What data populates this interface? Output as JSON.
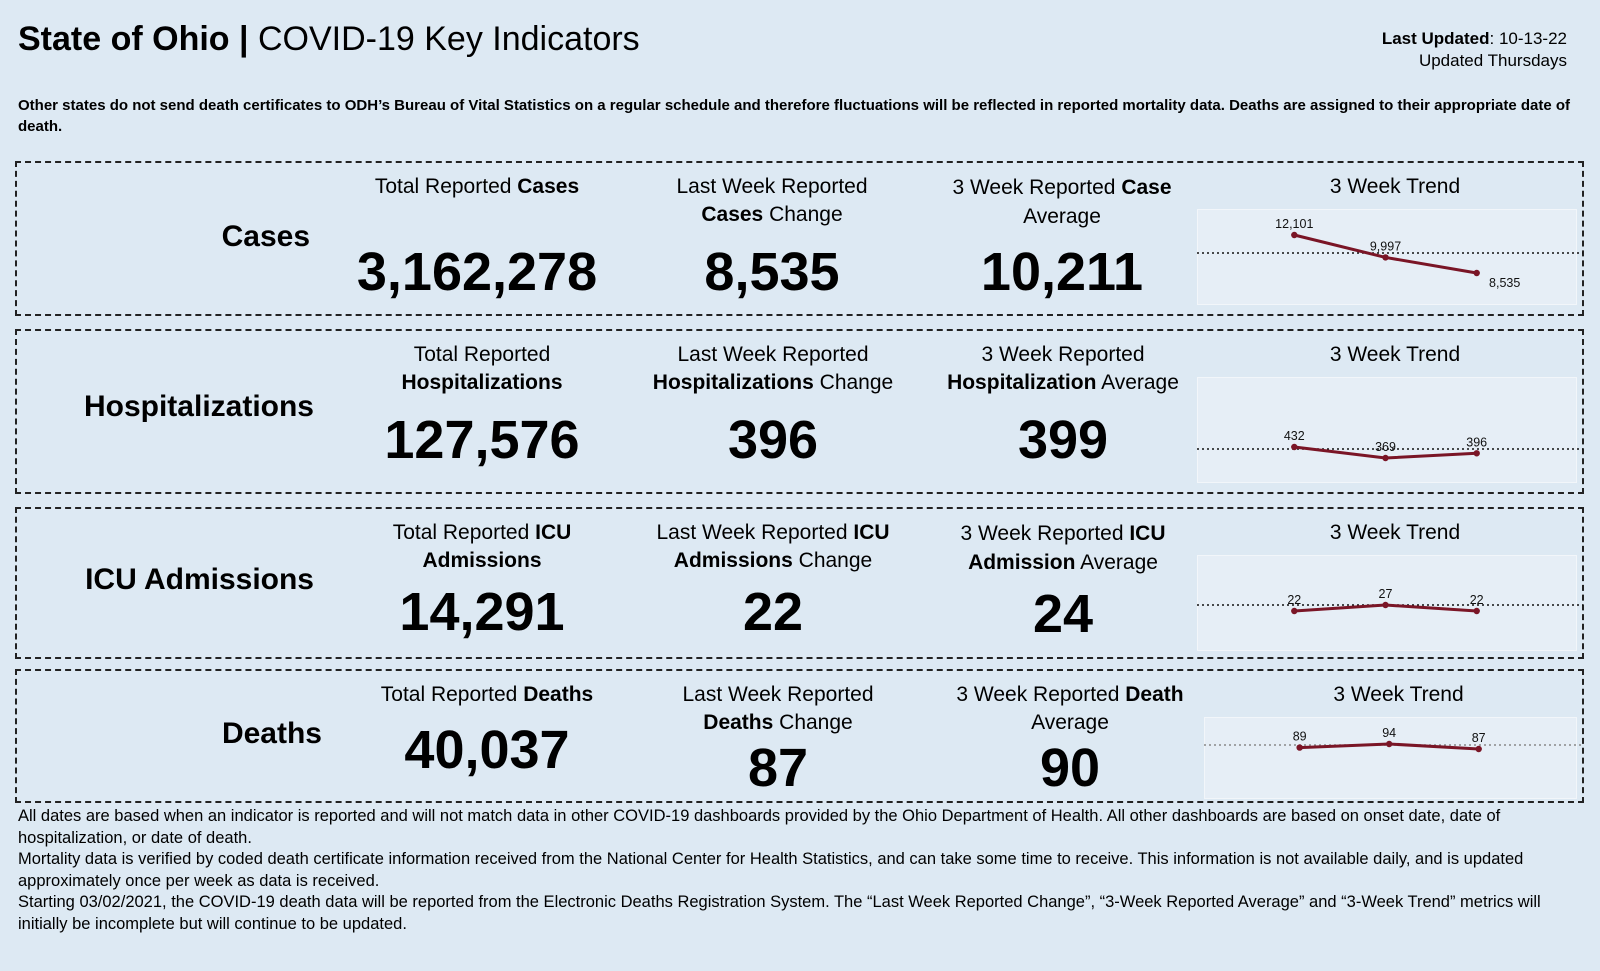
{
  "header": {
    "state": "State of Ohio |",
    "subtitle": "COVID-19 Key Indicators",
    "last_updated_label": "Last Updated",
    "last_updated_value": ": 10-13-22",
    "update_schedule": "Updated Thursdays"
  },
  "note": "Other states do not send death certificates to ODH’s Bureau of Vital Statistics on a regular schedule and therefore fluctuations will be reflected in reported mortality data. Deaths are assigned to their appropriate date of death.",
  "panels": [
    {
      "label": "Cases",
      "total": {
        "pre": "Total Reported ",
        "bold": "Cases",
        "post": "",
        "value": "3,162,278"
      },
      "change": {
        "line1": "Last Week Reported",
        "bold": "Cases",
        "post": " Change",
        "value": "8,535"
      },
      "average": {
        "pre": "3 Week Reported ",
        "bold": "Case",
        "line2": "Average",
        "value": "10,211"
      },
      "trend": {
        "title": "3 Week Trend",
        "points": [
          12101,
          9997,
          8535
        ],
        "labels": [
          "12,101",
          "9,997",
          "8,535"
        ]
      }
    },
    {
      "label": "Hospitalizations",
      "total": {
        "line1": "Total Reported",
        "bold": "Hospitalizations",
        "value": "127,576"
      },
      "change": {
        "line1": "Last Week Reported",
        "bold": "Hospitalizations",
        "post": " Change",
        "value": "396"
      },
      "average": {
        "line1": "3 Week Reported",
        "bold": "Hospitalization",
        "post": " Average",
        "value": "399"
      },
      "trend": {
        "title": "3 Week Trend",
        "points": [
          432,
          369,
          396
        ],
        "labels": [
          "432",
          "369",
          "396"
        ]
      }
    },
    {
      "label": "ICU Admissions",
      "total": {
        "pre": "Total Reported ",
        "bold": "ICU",
        "line2bold": "Admissions",
        "value": "14,291"
      },
      "change": {
        "pre": "Last Week Reported ",
        "bold": "ICU",
        "line2bold": "Admissions",
        "post": " Change",
        "value": "22"
      },
      "average": {
        "pre": "3 Week Reported ",
        "bold": "ICU",
        "line2bold": "Admission",
        "post": " Average",
        "value": "24"
      },
      "trend": {
        "title": "3 Week Trend",
        "points": [
          22,
          27,
          22
        ],
        "labels": [
          "22",
          "27",
          "22"
        ]
      }
    },
    {
      "label": "Deaths",
      "total": {
        "pre": "Total Reported ",
        "bold": "Deaths",
        "post": "",
        "value": "40,037"
      },
      "change": {
        "line1": "Last Week Reported",
        "bold": "Deaths",
        "post": " Change",
        "value": "87"
      },
      "average": {
        "pre": "3 Week Reported ",
        "bold": "Death",
        "line2": "Average",
        "value": "90"
      },
      "trend": {
        "title": "3 Week Trend",
        "points": [
          89,
          94,
          87
        ],
        "labels": [
          "89",
          "94",
          "87"
        ]
      }
    }
  ],
  "footer": {
    "p1": "All dates are based when an indicator is reported and will not match data in other COVID-19 dashboards provided by the Ohio Department of Health. All other dashboards are based on onset date, date of hospitalization, or date of death.",
    "p2": "Mortality data is verified by coded death certificate information received from the National Center for Health Statistics, and can take some time to receive. This information is not available daily, and is updated approximately once per week as data is received.",
    "p3": "Starting 03/02/2021, the COVID-19 death data will be reported from the Electronic Deaths Registration System. The “Last Week Reported Change”, “3-Week Reported Average” and “3-Week Trend” metrics will initially be incomplete but will continue to be updated."
  },
  "colors": {
    "trend_line": "#7a1526",
    "background": "#dde9f3"
  }
}
